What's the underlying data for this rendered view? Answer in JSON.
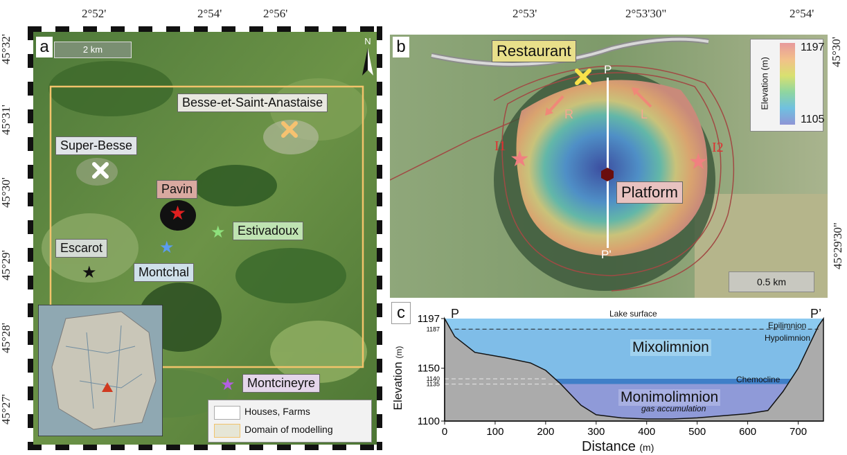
{
  "panel_a": {
    "letter": "a",
    "top_ticks": [
      "2°52'",
      "2°54'",
      "2°56'"
    ],
    "left_ticks": [
      "45°32'",
      "45°31'",
      "45°30'",
      "45°29'",
      "45°28'",
      "45°27'"
    ],
    "scale": "2 km",
    "north": "N",
    "places": {
      "besse": "Besse-et-Saint-Anastaise",
      "superbesse": "Super-Besse",
      "pavin": "Pavin",
      "estivadoux": "Estivadoux",
      "escarot": "Escarot",
      "montchal": "Montchal",
      "montcineyre": "Montcineyre"
    },
    "legend": [
      "Houses, Farms",
      "Domain of modelling"
    ]
  },
  "panel_b": {
    "letter": "b",
    "top_ticks": [
      "2°53'",
      "2°53'30\"",
      "2°54'"
    ],
    "right_ticks": [
      "45°30'",
      "45°29'30\""
    ],
    "restaurant": "Restaurant",
    "platform": "Platform",
    "i1": "I1",
    "i2": "I2",
    "p": "P",
    "p_prime": "P'",
    "r": "R",
    "l": "L",
    "scale": "0.5 km",
    "colorbar": {
      "title": "Elevation (m)",
      "max": "1197",
      "min": "1105"
    }
  },
  "panel_c": {
    "letter": "c",
    "p": "P",
    "p_prime": "P’",
    "lake_surface": "Lake surface",
    "epilimnion": "Epilimnion",
    "hypolimnion": "Hypolimnion",
    "mixolimnion": "Mixolimnion",
    "chemocline": "Chemocline",
    "monimolimnion": "Monimolimnion",
    "gas": "gas accumulation",
    "ylabel": "Elevation",
    "ylabel_unit": "(m)",
    "xlabel": "Distance",
    "xlabel_unit": "(m)",
    "yticks_major": [
      "1197",
      "1150",
      "1100"
    ],
    "yticks_minor": [
      "1187",
      "1140",
      "1135"
    ],
    "xticks": [
      "0",
      "100",
      "200",
      "300",
      "400",
      "500",
      "600",
      "700"
    ]
  },
  "chart_data": {
    "type": "area",
    "title": "",
    "xlabel": "Distance (m)",
    "ylabel": "Elevation (m)",
    "xlim": [
      0,
      750
    ],
    "ylim": [
      1100,
      1197
    ],
    "layers": [
      {
        "name": "Epilimnion",
        "top": 1197,
        "bottom": 1187
      },
      {
        "name": "Mixolimnion",
        "top": 1187,
        "bottom": 1140
      },
      {
        "name": "Chemocline",
        "top": 1140,
        "bottom": 1135
      },
      {
        "name": "Monimolimnion",
        "top": 1135,
        "bottom": 1100
      }
    ],
    "bathymetry": {
      "x": [
        0,
        20,
        60,
        120,
        170,
        200,
        230,
        270,
        300,
        350,
        400,
        450,
        500,
        550,
        600,
        640,
        670,
        700,
        720,
        740,
        750
      ],
      "y": [
        1197,
        1180,
        1165,
        1160,
        1155,
        1148,
        1135,
        1115,
        1106,
        1103,
        1102,
        1102,
        1103,
        1105,
        1107,
        1110,
        1128,
        1150,
        1170,
        1190,
        1197
      ]
    }
  }
}
